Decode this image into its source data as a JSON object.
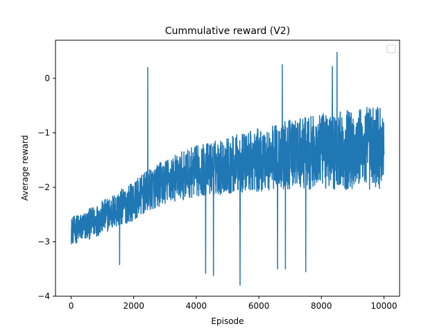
{
  "chart_data": {
    "type": "line",
    "title": "Cummulative reward (V2)",
    "xlabel": "Episode",
    "ylabel": "Average reward",
    "xlim": [
      -500,
      10500
    ],
    "ylim": [
      -4.0,
      0.7
    ],
    "xticks": [
      0,
      2000,
      4000,
      6000,
      8000,
      10000
    ],
    "xtick_labels": [
      "0",
      "2000",
      "4000",
      "6000",
      "8000",
      "10000"
    ],
    "yticks": [
      -4,
      -3,
      -2,
      -1,
      0
    ],
    "ytick_labels": [
      "−4",
      "−3",
      "−2",
      "−1",
      "0"
    ],
    "grid": false,
    "legend": {
      "placement": "top-right",
      "entries": []
    },
    "series": [
      {
        "color": "#1f77b4",
        "x_range": [
          0,
          10000
        ],
        "trend": [
          [
            0,
            -2.8
          ],
          [
            500,
            -2.7
          ],
          [
            1000,
            -2.55
          ],
          [
            1500,
            -2.4
          ],
          [
            2000,
            -2.25
          ],
          [
            2500,
            -2.05
          ],
          [
            3000,
            -1.9
          ],
          [
            3500,
            -1.8
          ],
          [
            4000,
            -1.7
          ],
          [
            5000,
            -1.6
          ],
          [
            6000,
            -1.5
          ],
          [
            7000,
            -1.4
          ],
          [
            8000,
            -1.35
          ],
          [
            9000,
            -1.3
          ],
          [
            10000,
            -1.25
          ]
        ],
        "notable_points": [
          [
            2450,
            0.2
          ],
          [
            8500,
            0.48
          ],
          [
            8350,
            0.22
          ],
          [
            6750,
            0.25
          ],
          [
            1550,
            -3.42
          ],
          [
            4300,
            -3.58
          ],
          [
            4550,
            -3.62
          ],
          [
            5400,
            -3.8
          ],
          [
            6600,
            -3.5
          ],
          [
            6850,
            -3.5
          ],
          [
            7500,
            -3.55
          ],
          [
            9950,
            -1.0
          ]
        ]
      }
    ]
  }
}
